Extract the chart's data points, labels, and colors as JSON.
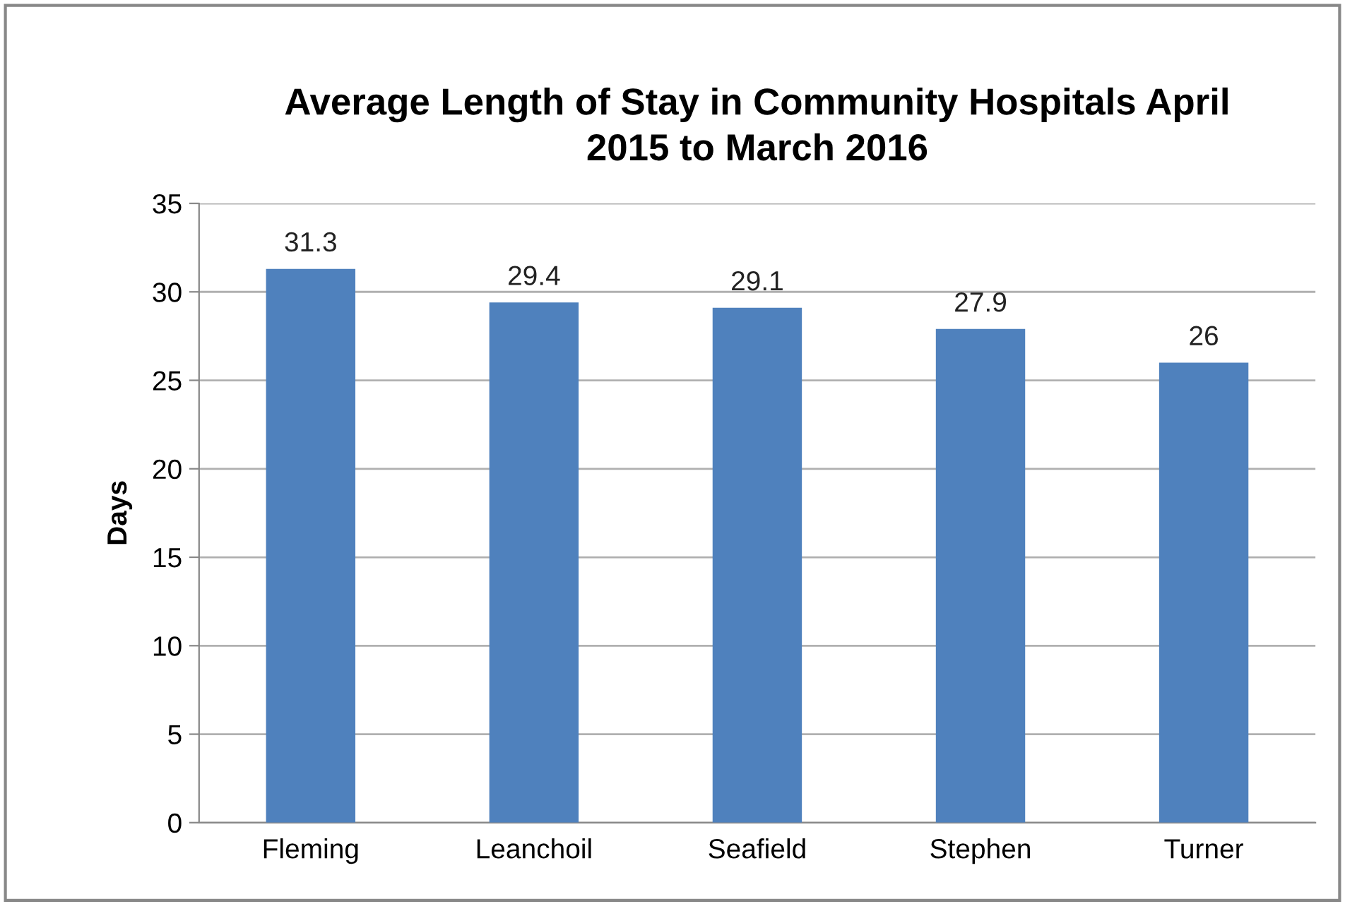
{
  "chart_data": {
    "type": "bar",
    "title": "Average Length of Stay in Community Hospitals April\n2015 to March 2016",
    "ylabel": "Days",
    "categories": [
      "Fleming",
      "Leanchoil",
      "Seafield",
      "Stephen",
      "Turner"
    ],
    "values": [
      31.3,
      29.4,
      29.1,
      27.9,
      26
    ],
    "color": "#4f81bd",
    "ylim": [
      0,
      35
    ],
    "yticks": [
      0,
      5,
      10,
      15,
      20,
      25,
      30,
      35
    ],
    "grid": "y",
    "data_labels": true,
    "legend": false
  }
}
